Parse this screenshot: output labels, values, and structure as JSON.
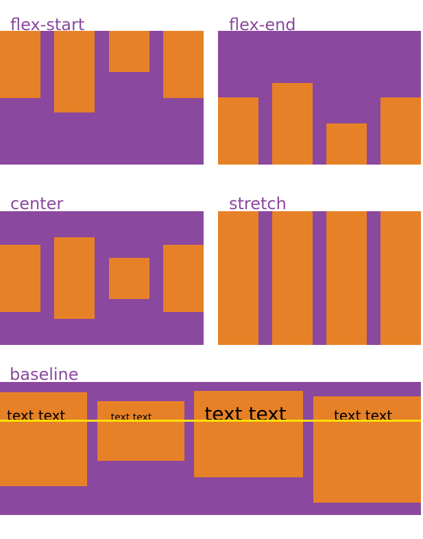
{
  "colors": {
    "background": "#ffffff",
    "container": "#8a489e",
    "item": "#e78127",
    "title_text": "#8a489e",
    "item_text": "#000000",
    "baseline_line": "#ffe100"
  },
  "panels": {
    "flex_start": {
      "title": "flex-start"
    },
    "flex_end": {
      "title": "flex-end"
    },
    "center": {
      "title": "center"
    },
    "stretch": {
      "title": "stretch"
    },
    "baseline": {
      "title": "baseline",
      "items": [
        {
          "text": "text text"
        },
        {
          "text": "text text"
        },
        {
          "text": "text text"
        },
        {
          "text": "text text"
        }
      ]
    }
  }
}
